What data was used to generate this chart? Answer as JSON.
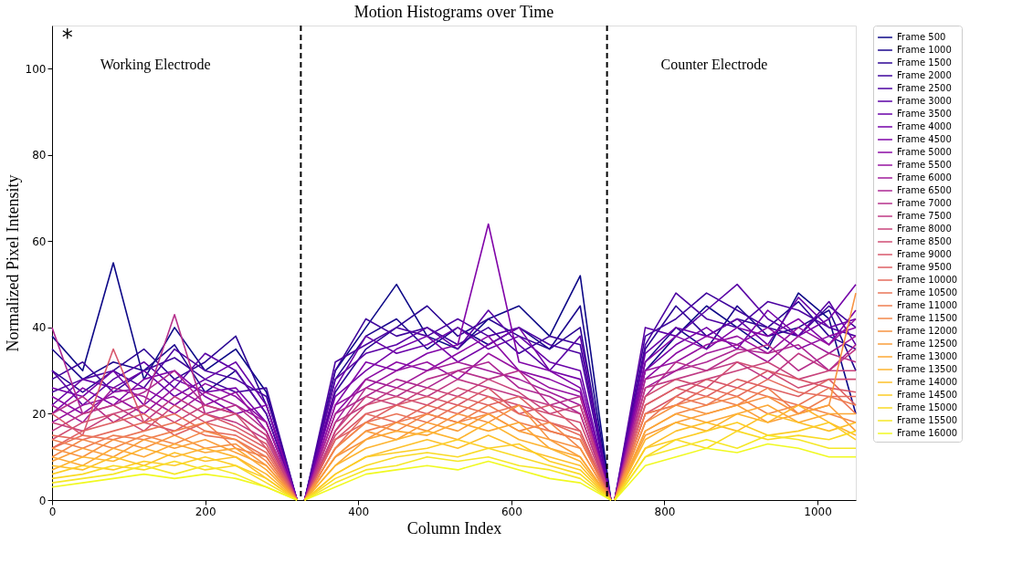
{
  "chart_data": {
    "type": "line",
    "title": "Motion Histograms over Time",
    "xlabel": "Column Index",
    "ylabel": "Normalized Pixel Intensity",
    "annotations": [
      "*",
      "Working Electrode",
      "Counter Electrode"
    ],
    "x": [
      0,
      40,
      80,
      120,
      160,
      200,
      240,
      280,
      320,
      325,
      330,
      370,
      410,
      450,
      490,
      530,
      570,
      610,
      650,
      690,
      730,
      732,
      735,
      775,
      815,
      855,
      895,
      935,
      975,
      1015,
      1050
    ],
    "xlim": [
      0,
      1050
    ],
    "xticks": [
      0,
      200,
      400,
      600,
      800,
      1000
    ],
    "ylim": [
      0,
      110
    ],
    "yticks": [
      0,
      20,
      40,
      60,
      80,
      100
    ],
    "grid": false,
    "legend": "right",
    "line_style": "solid",
    "marker": "none",
    "ref_lines": [
      {
        "axis": "x",
        "value": 325,
        "color": "#000000",
        "line_style": "dashed"
      },
      {
        "axis": "x",
        "value": 725,
        "color": "#000000",
        "line_style": "dashed"
      }
    ],
    "series": [
      {
        "name": "Frame 500",
        "color": "#0d0887",
        "values": [
          38,
          30,
          55,
          28,
          40,
          30,
          35,
          25,
          0,
          null,
          0,
          30,
          40,
          50,
          38,
          35,
          42,
          45,
          38,
          52,
          0,
          null,
          0,
          30,
          38,
          45,
          40,
          35,
          48,
          42,
          20
        ]
      },
      {
        "name": "Frame 1000",
        "color": "#1b068d",
        "values": [
          35,
          28,
          32,
          30,
          36,
          25,
          30,
          20,
          0,
          null,
          0,
          28,
          38,
          42,
          35,
          40,
          36,
          40,
          35,
          45,
          0,
          null,
          0,
          32,
          40,
          35,
          45,
          38,
          40,
          44,
          30
        ]
      },
      {
        "name": "Frame 1500",
        "color": "#2c0594",
        "values": [
          30,
          25,
          30,
          35,
          28,
          32,
          38,
          22,
          0,
          null,
          0,
          25,
          35,
          40,
          45,
          38,
          42,
          38,
          35,
          40,
          0,
          null,
          0,
          35,
          45,
          38,
          42,
          40,
          46,
          38,
          35
        ]
      },
      {
        "name": "Frame 2000",
        "color": "#3e049c",
        "values": [
          28,
          32,
          25,
          30,
          33,
          28,
          25,
          26,
          0,
          null,
          0,
          30,
          42,
          38,
          40,
          36,
          40,
          34,
          38,
          36,
          0,
          null,
          0,
          38,
          42,
          48,
          44,
          40,
          38,
          45,
          40
        ]
      },
      {
        "name": "Frame 2500",
        "color": "#4c02a1",
        "values": [
          25,
          28,
          30,
          26,
          35,
          30,
          28,
          24,
          0,
          null,
          0,
          32,
          36,
          40,
          38,
          42,
          38,
          40,
          36,
          34,
          0,
          null,
          0,
          36,
          48,
          42,
          40,
          46,
          44,
          40,
          38
        ]
      },
      {
        "name": "Frame 3000",
        "color": "#5a01a5",
        "values": [
          30,
          22,
          28,
          32,
          26,
          34,
          30,
          20,
          0,
          null,
          0,
          28,
          34,
          36,
          40,
          35,
          44,
          36,
          30,
          38,
          0,
          null,
          0,
          40,
          38,
          44,
          50,
          42,
          38,
          46,
          36
        ]
      },
      {
        "name": "Frame 3500",
        "color": "#6800a8",
        "values": [
          22,
          28,
          26,
          30,
          24,
          28,
          32,
          22,
          0,
          null,
          0,
          26,
          38,
          34,
          36,
          40,
          35,
          38,
          32,
          30,
          0,
          null,
          0,
          34,
          40,
          38,
          42,
          36,
          47,
          40,
          42
        ]
      },
      {
        "name": "Frame 4000",
        "color": "#7401a8",
        "values": [
          26,
          24,
          30,
          22,
          28,
          25,
          26,
          18,
          0,
          null,
          0,
          24,
          30,
          35,
          38,
          32,
          36,
          40,
          30,
          28,
          0,
          null,
          0,
          30,
          36,
          40,
          35,
          44,
          38,
          42,
          50
        ]
      },
      {
        "name": "Frame 4500",
        "color": "#8004a8",
        "values": [
          20,
          26,
          22,
          28,
          30,
          24,
          20,
          22,
          0,
          null,
          0,
          22,
          32,
          30,
          34,
          36,
          64,
          32,
          30,
          26,
          0,
          null,
          0,
          32,
          38,
          35,
          40,
          38,
          42,
          36,
          44
        ]
      },
      {
        "name": "Frame 5000",
        "color": "#8b0aa5",
        "values": [
          24,
          20,
          25,
          26,
          22,
          27,
          24,
          18,
          0,
          null,
          0,
          20,
          28,
          32,
          30,
          34,
          38,
          30,
          28,
          25,
          0,
          null,
          0,
          28,
          34,
          38,
          36,
          40,
          35,
          38,
          40
        ]
      },
      {
        "name": "Frame 5500",
        "color": "#9612a1",
        "values": [
          18,
          22,
          24,
          20,
          26,
          22,
          25,
          16,
          0,
          null,
          0,
          22,
          26,
          30,
          32,
          28,
          34,
          30,
          26,
          24,
          0,
          null,
          0,
          30,
          32,
          36,
          38,
          34,
          40,
          36,
          42
        ]
      },
      {
        "name": "Frame 6000",
        "color": "#a11b9b",
        "values": [
          22,
          18,
          26,
          24,
          20,
          25,
          22,
          18,
          0,
          null,
          0,
          18,
          28,
          26,
          30,
          32,
          30,
          28,
          25,
          22,
          0,
          null,
          0,
          26,
          30,
          34,
          36,
          32,
          38,
          34,
          38
        ]
      },
      {
        "name": "Frame 6500",
        "color": "#ad2793",
        "values": [
          40,
          20,
          22,
          25,
          30,
          22,
          20,
          15,
          0,
          null,
          0,
          20,
          24,
          28,
          26,
          30,
          32,
          26,
          24,
          20,
          0,
          null,
          0,
          28,
          30,
          32,
          35,
          34,
          36,
          30,
          36
        ]
      },
      {
        "name": "Frame 7000",
        "color": "#b6308b",
        "values": [
          20,
          24,
          18,
          22,
          43,
          20,
          22,
          16,
          0,
          null,
          0,
          16,
          26,
          24,
          28,
          30,
          28,
          30,
          22,
          24,
          0,
          null,
          0,
          24,
          32,
          30,
          34,
          36,
          30,
          34,
          32
        ]
      },
      {
        "name": "Frame 7500",
        "color": "#bf3984",
        "values": [
          16,
          20,
          22,
          18,
          24,
          20,
          18,
          14,
          0,
          null,
          0,
          18,
          22,
          26,
          24,
          28,
          26,
          24,
          22,
          20,
          0,
          null,
          0,
          26,
          28,
          30,
          32,
          28,
          34,
          30,
          35
        ]
      },
      {
        "name": "Frame 8000",
        "color": "#c8437b",
        "values": [
          18,
          16,
          20,
          22,
          18,
          22,
          20,
          15,
          0,
          null,
          0,
          16,
          24,
          22,
          26,
          24,
          28,
          25,
          20,
          22,
          0,
          null,
          0,
          22,
          26,
          28,
          30,
          32,
          28,
          30,
          30
        ]
      },
      {
        "name": "Frame 8500",
        "color": "#d04d73",
        "values": [
          14,
          18,
          20,
          16,
          22,
          18,
          20,
          12,
          0,
          null,
          0,
          15,
          22,
          24,
          22,
          26,
          24,
          22,
          20,
          18,
          0,
          null,
          0,
          24,
          28,
          26,
          32,
          30,
          26,
          28,
          28
        ]
      },
      {
        "name": "Frame 9000",
        "color": "#d8576b",
        "values": [
          20,
          15,
          35,
          18,
          16,
          20,
          17,
          13,
          0,
          null,
          0,
          14,
          20,
          22,
          24,
          22,
          26,
          20,
          22,
          16,
          0,
          null,
          0,
          20,
          24,
          28,
          26,
          30,
          28,
          26,
          25
        ]
      },
      {
        "name": "Frame 9500",
        "color": "#de6164",
        "values": [
          12,
          16,
          18,
          20,
          15,
          18,
          16,
          12,
          0,
          null,
          0,
          14,
          18,
          22,
          20,
          24,
          22,
          24,
          18,
          16,
          0,
          null,
          0,
          22,
          26,
          24,
          28,
          26,
          24,
          28,
          22
        ]
      },
      {
        "name": "Frame 10000",
        "color": "#e56b5d",
        "values": [
          15,
          14,
          16,
          18,
          20,
          16,
          15,
          11,
          0,
          null,
          0,
          12,
          20,
          18,
          22,
          20,
          24,
          20,
          18,
          15,
          0,
          null,
          0,
          20,
          22,
          26,
          24,
          28,
          25,
          24,
          24
        ]
      },
      {
        "name": "Frame 10500",
        "color": "#ea7457",
        "values": [
          12,
          15,
          14,
          16,
          18,
          15,
          14,
          10,
          0,
          null,
          0,
          12,
          18,
          20,
          18,
          22,
          20,
          22,
          16,
          14,
          0,
          null,
          0,
          18,
          24,
          22,
          26,
          24,
          22,
          26,
          20
        ]
      },
      {
        "name": "Frame 11000",
        "color": "#ef7e50",
        "values": [
          14,
          12,
          15,
          14,
          16,
          18,
          12,
          10,
          0,
          null,
          0,
          10,
          16,
          18,
          20,
          18,
          22,
          18,
          16,
          14,
          0,
          null,
          0,
          20,
          22,
          24,
          22,
          26,
          20,
          24,
          22
        ]
      },
      {
        "name": "Frame 11500",
        "color": "#f3884a",
        "values": [
          10,
          14,
          12,
          15,
          13,
          16,
          14,
          9,
          0,
          null,
          0,
          12,
          18,
          16,
          20,
          18,
          20,
          16,
          18,
          12,
          0,
          null,
          0,
          16,
          20,
          22,
          24,
          20,
          22,
          20,
          18
        ]
      },
      {
        "name": "Frame 12000",
        "color": "#f79342",
        "values": [
          12,
          10,
          14,
          12,
          15,
          12,
          13,
          8,
          0,
          null,
          0,
          10,
          14,
          18,
          16,
          20,
          18,
          22,
          14,
          12,
          0,
          null,
          0,
          18,
          22,
          20,
          22,
          24,
          20,
          22,
          48
        ]
      },
      {
        "name": "Frame 12500",
        "color": "#fa9e3b",
        "values": [
          9,
          12,
          10,
          14,
          12,
          14,
          11,
          8,
          0,
          null,
          0,
          10,
          16,
          14,
          18,
          16,
          20,
          16,
          14,
          10,
          0,
          null,
          0,
          15,
          18,
          20,
          22,
          18,
          20,
          22,
          16
        ]
      },
      {
        "name": "Frame 13000",
        "color": "#fca835",
        "values": [
          10,
          8,
          12,
          10,
          13,
          11,
          12,
          7,
          0,
          null,
          0,
          8,
          14,
          16,
          15,
          18,
          16,
          18,
          12,
          10,
          0,
          null,
          0,
          16,
          20,
          18,
          20,
          22,
          18,
          20,
          20
        ]
      },
      {
        "name": "Frame 13500",
        "color": "#fdb42f",
        "values": [
          7,
          10,
          9,
          12,
          10,
          12,
          10,
          6,
          0,
          null,
          0,
          8,
          12,
          14,
          16,
          14,
          18,
          14,
          12,
          9,
          0,
          null,
          0,
          14,
          18,
          16,
          20,
          18,
          22,
          18,
          15
        ]
      },
      {
        "name": "Frame 14000",
        "color": "#fdc029",
        "values": [
          8,
          7,
          10,
          8,
          11,
          9,
          10,
          5,
          0,
          null,
          0,
          6,
          10,
          12,
          14,
          12,
          15,
          12,
          10,
          8,
          0,
          null,
          0,
          12,
          16,
          18,
          16,
          20,
          18,
          16,
          18
        ]
      },
      {
        "name": "Frame 14500",
        "color": "#fccd25",
        "values": [
          6,
          8,
          7,
          9,
          8,
          10,
          8,
          5,
          0,
          null,
          0,
          6,
          10,
          11,
          12,
          14,
          12,
          13,
          9,
          7,
          0,
          null,
          0,
          12,
          14,
          16,
          18,
          15,
          16,
          18,
          14
        ]
      },
      {
        "name": "Frame 15000",
        "color": "#f9da24",
        "values": [
          5,
          6,
          8,
          7,
          9,
          7,
          8,
          4,
          0,
          null,
          0,
          5,
          8,
          10,
          11,
          10,
          12,
          10,
          8,
          6,
          0,
          null,
          0,
          10,
          14,
          12,
          16,
          14,
          15,
          14,
          16
        ]
      },
      {
        "name": "Frame 15500",
        "color": "#f5e726",
        "values": [
          4,
          5,
          6,
          8,
          6,
          8,
          6,
          3,
          0,
          null,
          0,
          4,
          7,
          8,
          10,
          9,
          10,
          8,
          7,
          5,
          0,
          null,
          0,
          10,
          12,
          14,
          12,
          15,
          14,
          12,
          12
        ]
      },
      {
        "name": "Frame 16000",
        "color": "#f0f921",
        "values": [
          3,
          4,
          5,
          6,
          5,
          6,
          5,
          3,
          0,
          null,
          0,
          3,
          6,
          7,
          8,
          7,
          9,
          7,
          5,
          4,
          0,
          null,
          0,
          8,
          10,
          12,
          11,
          13,
          12,
          10,
          10
        ]
      }
    ]
  }
}
